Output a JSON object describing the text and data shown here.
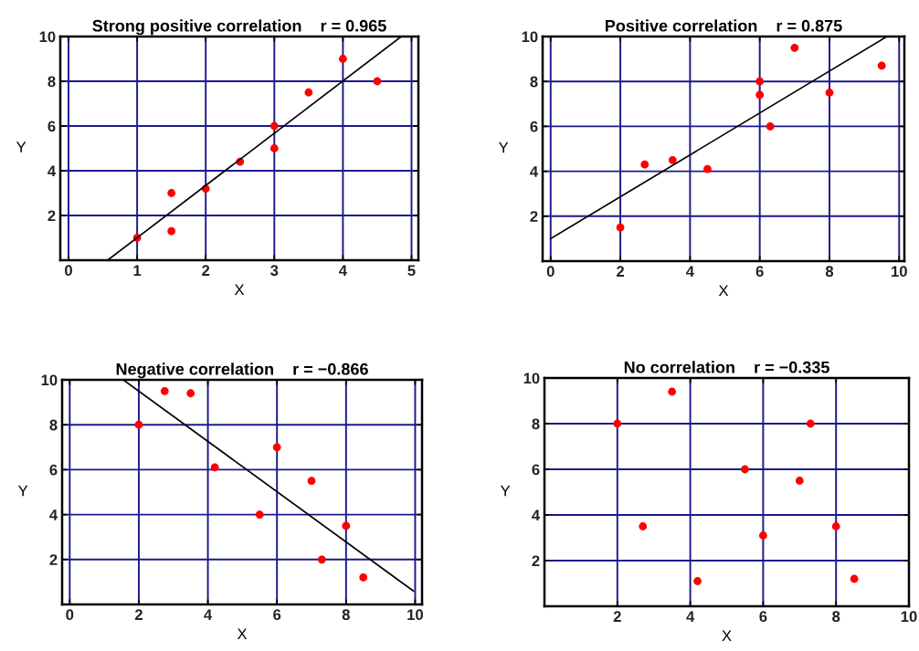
{
  "chart_data": [
    {
      "type": "scatter",
      "title": "Strong positive correlation    r = 0.965",
      "xlabel": "X",
      "ylabel": "Y",
      "xlim": [
        -0.12,
        5.1
      ],
      "ylim": [
        0,
        10
      ],
      "xticks": [
        0,
        1,
        2,
        3,
        4,
        5
      ],
      "yticks": [
        2,
        4,
        6,
        8,
        10
      ],
      "grid": true,
      "series": [
        {
          "color": "#ff0000",
          "marker": "circle",
          "x": [
            1,
            1.5,
            1.5,
            2,
            2.5,
            3,
            3,
            3.5,
            4,
            4.5
          ],
          "values": [
            1,
            3,
            1.3,
            3.2,
            4.4,
            6,
            5,
            7.5,
            9,
            8
          ]
        },
        {
          "type": "line",
          "color": "#000000",
          "marker": "none",
          "x": [
            0.57,
            4.85
          ],
          "values": [
            0,
            10
          ]
        }
      ]
    },
    {
      "type": "scatter",
      "title": "Positive correlation    r = 0.875",
      "xlabel": "X",
      "ylabel": "Y",
      "xlim": [
        -0.23,
        10.15
      ],
      "ylim": [
        0,
        10
      ],
      "xticks": [
        0,
        2,
        4,
        6,
        8,
        10
      ],
      "yticks": [
        2,
        4,
        6,
        8,
        10
      ],
      "grid": true,
      "series": [
        {
          "color": "#ff0000",
          "marker": "circle",
          "x": [
            2,
            2.7,
            3.5,
            4.5,
            6,
            6,
            6.3,
            7,
            8,
            9.5
          ],
          "values": [
            1.5,
            4.3,
            4.5,
            4.1,
            8,
            7.4,
            6,
            9.5,
            7.5,
            8.7
          ]
        },
        {
          "type": "line",
          "color": "#000000",
          "marker": "none",
          "x": [
            0,
            9.65
          ],
          "values": [
            1,
            10
          ]
        }
      ]
    },
    {
      "type": "scatter",
      "title": "Negative correlation    r = −0.866",
      "xlabel": "X",
      "ylabel": "Y",
      "xlim": [
        -0.22,
        10.2
      ],
      "ylim": [
        0,
        10
      ],
      "xticks": [
        0,
        2,
        4,
        6,
        8,
        10
      ],
      "yticks": [
        2,
        4,
        6,
        8,
        10
      ],
      "grid": true,
      "series": [
        {
          "color": "#ff0000",
          "marker": "circle",
          "x": [
            2,
            2.75,
            3.5,
            4.2,
            5.5,
            6,
            7,
            8,
            7.3,
            8.5
          ],
          "values": [
            8,
            9.5,
            9.4,
            6.1,
            4,
            7,
            5.5,
            3.5,
            2,
            1.2
          ]
        },
        {
          "type": "line",
          "color": "#000000",
          "marker": "none",
          "x": [
            1.55,
            9.95
          ],
          "values": [
            10,
            0.6
          ]
        }
      ]
    },
    {
      "type": "scatter",
      "title": "No correlation    r = −0.335",
      "xlabel": "X",
      "ylabel": "Y",
      "xlim": [
        0,
        10
      ],
      "ylim": [
        0,
        10
      ],
      "xticks": [
        2,
        4,
        6,
        8,
        10
      ],
      "yticks": [
        2,
        4,
        6,
        8,
        10
      ],
      "grid": true,
      "series": [
        {
          "color": "#ff0000",
          "marker": "circle",
          "x": [
            2,
            2.7,
            3.5,
            4.2,
            5.5,
            6,
            7,
            7.3,
            8,
            8.5
          ],
          "values": [
            8,
            3.5,
            9.4,
            1.1,
            6,
            3.1,
            5.5,
            8,
            3.5,
            1.2
          ]
        }
      ]
    }
  ]
}
